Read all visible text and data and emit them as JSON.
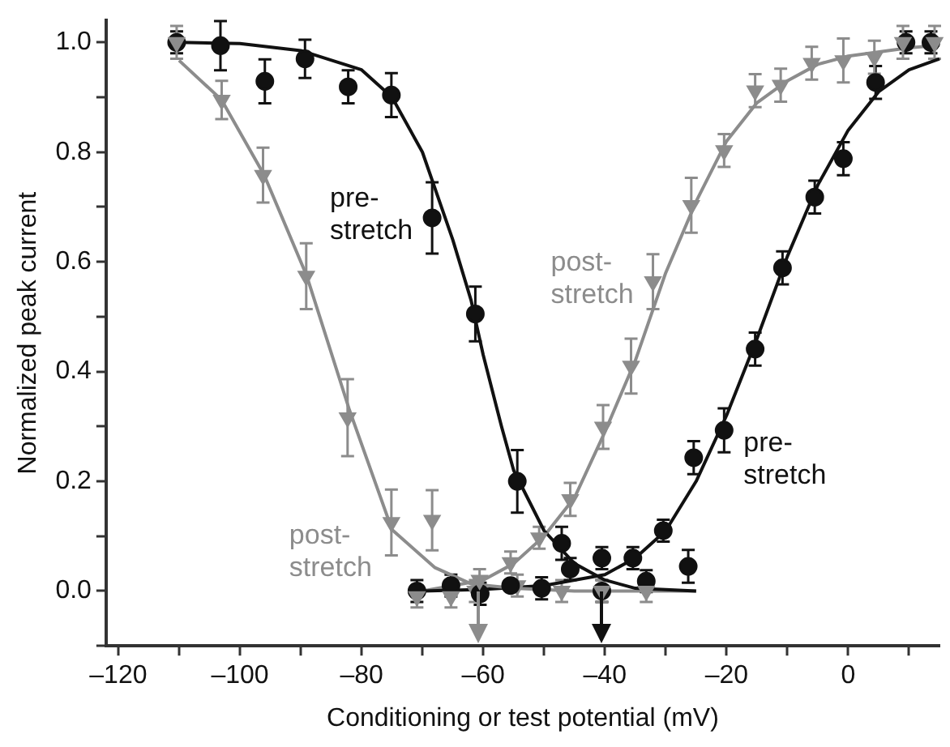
{
  "chart_data": {
    "type": "scatter",
    "xlabel": "Conditioning or test potential (mV)",
    "ylabel": "Normalized peak current",
    "xlim": [
      -122,
      15
    ],
    "ylim": [
      -0.1,
      1.04
    ],
    "xticks": [
      {
        "value": -120,
        "label": "–120"
      },
      {
        "value": -110,
        "label": null
      },
      {
        "value": -100,
        "label": "–100"
      },
      {
        "value": -90,
        "label": null
      },
      {
        "value": -80,
        "label": "–80"
      },
      {
        "value": -70,
        "label": null
      },
      {
        "value": -60,
        "label": "–60"
      },
      {
        "value": -50,
        "label": null
      },
      {
        "value": -40,
        "label": "–40"
      },
      {
        "value": -30,
        "label": null
      },
      {
        "value": -20,
        "label": "–20"
      },
      {
        "value": -10,
        "label": null
      },
      {
        "value": 0,
        "label": "0"
      },
      {
        "value": 10,
        "label": null
      }
    ],
    "yticks": [
      {
        "value": -0.1,
        "label": null
      },
      {
        "value": 0,
        "label": "0.0"
      },
      {
        "value": 0.1,
        "label": null
      },
      {
        "value": 0.2,
        "label": "0.2"
      },
      {
        "value": 0.3,
        "label": null
      },
      {
        "value": 0.4,
        "label": "0.4"
      },
      {
        "value": 0.5,
        "label": null
      },
      {
        "value": 0.6,
        "label": "0.6"
      },
      {
        "value": 0.7,
        "label": null
      },
      {
        "value": 0.8,
        "label": "0.8"
      },
      {
        "value": 0.9,
        "label": null
      },
      {
        "value": 1.0,
        "label": "1.0"
      }
    ],
    "grid": false,
    "legend": false,
    "series": [
      {
        "type": "line",
        "marker": "none",
        "color": "#111111",
        "x": [
          -110,
          -100,
          -90,
          -80,
          -75,
          -70,
          -65,
          -62,
          -60,
          -57,
          -55,
          -50,
          -45,
          -40,
          -35,
          -25
        ],
        "values": [
          1.0,
          0.998,
          0.985,
          0.95,
          0.9,
          0.8,
          0.64,
          0.53,
          0.43,
          0.3,
          0.22,
          0.11,
          0.05,
          0.02,
          0.005,
          0.0
        ]
      },
      {
        "type": "line",
        "marker": "none",
        "color": "#8c8c8c",
        "x": [
          -110,
          -103,
          -96,
          -89,
          -82,
          -75,
          -68,
          -62,
          -55,
          -45,
          -35,
          -25
        ],
        "values": [
          0.967,
          0.895,
          0.758,
          0.574,
          0.33,
          0.112,
          0.043,
          0.013,
          0.005,
          0.0,
          0.0,
          0.0
        ]
      },
      {
        "type": "line",
        "marker": "none",
        "color": "#111111",
        "x": [
          -70,
          -60,
          -50,
          -40,
          -35,
          -30,
          -25,
          -20,
          -15,
          -10,
          -5,
          0,
          5,
          10,
          15
        ],
        "values": [
          0.0,
          0.003,
          0.01,
          0.03,
          0.06,
          0.11,
          0.2,
          0.32,
          0.46,
          0.61,
          0.74,
          0.84,
          0.91,
          0.95,
          0.97
        ]
      },
      {
        "type": "line",
        "marker": "none",
        "color": "#8c8c8c",
        "x": [
          -70,
          -60,
          -55,
          -50,
          -45,
          -40,
          -35,
          -30,
          -25,
          -20,
          -15,
          -10,
          -5,
          0,
          10,
          15
        ],
        "values": [
          0.0,
          0.02,
          0.05,
          0.1,
          0.17,
          0.29,
          0.42,
          0.58,
          0.71,
          0.82,
          0.89,
          0.93,
          0.96,
          0.975,
          0.99,
          0.995
        ]
      },
      {
        "type": "scatter",
        "name": "pre-stretch",
        "marker": "circle",
        "color": "#111111",
        "x": [
          -110.4,
          -103.2,
          -95.9,
          -89.3,
          -82.2,
          -75.1,
          -68.4,
          -61.3,
          -54.4,
          -47.1,
          -40.5,
          -33.2,
          -26.3
        ],
        "values": [
          1.0,
          0.994,
          0.929,
          0.97,
          0.919,
          0.904,
          0.68,
          0.505,
          0.2,
          0.087,
          0.0,
          0.018,
          0.045
        ],
        "errors": [
          0.02,
          0.045,
          0.04,
          0.035,
          0.03,
          0.04,
          0.065,
          0.05,
          0.057,
          0.03,
          0.02,
          0.02,
          0.03
        ]
      },
      {
        "type": "scatter",
        "name": "post-stretch",
        "marker": "triangle",
        "color": "#8c8c8c",
        "x": [
          -110.4,
          -103,
          -96.2,
          -89.1,
          -82.3,
          -75.1,
          -68.4,
          -61.3,
          -54.4,
          -47.1,
          -40.5,
          -33.2
        ],
        "values": [
          1.0,
          0.895,
          0.758,
          0.574,
          0.316,
          0.125,
          0.129,
          0.0,
          0.01,
          0.0,
          0.0,
          0.0
        ],
        "errors": [
          0.03,
          0.035,
          0.05,
          0.06,
          0.07,
          0.06,
          0.055,
          0.02,
          0.02,
          0.02,
          0.02,
          0.02
        ]
      },
      {
        "type": "scatter",
        "name": "pre-stretch",
        "marker": "circle",
        "color": "#111111",
        "x": [
          -70.9,
          -65.3,
          -60.5,
          -55.5,
          -50.4,
          -45.7,
          -40.5,
          -35.4,
          -30.4,
          -25.4,
          -20.4,
          -15.3,
          -10.8,
          -5.5,
          -0.8,
          4.5,
          9.5,
          13.6
        ],
        "values": [
          0.0,
          0.01,
          -0.005,
          0.01,
          0.005,
          0.04,
          0.06,
          0.06,
          0.11,
          0.243,
          0.293,
          0.441,
          0.589,
          0.718,
          0.788,
          0.927,
          1.0,
          1.0
        ],
        "errors": [
          0.02,
          0.02,
          0.02,
          null,
          0.02,
          0.02,
          0.02,
          0.02,
          0.02,
          0.03,
          0.04,
          0.03,
          0.03,
          0.03,
          0.03,
          0.03,
          0.02,
          0.02
        ]
      },
      {
        "type": "scatter",
        "name": "post-stretch",
        "marker": "triangle",
        "color": "#8c8c8c",
        "x": [
          -70.9,
          -65.3,
          -60.6,
          -55.5,
          -50.8,
          -45.7,
          -40.3,
          -35.7,
          -32.1,
          -25.8,
          -20.4,
          -15.3,
          -11.1,
          -6.0,
          -0.8,
          4.3,
          9.0,
          14.2
        ],
        "values": [
          -0.01,
          -0.01,
          0.02,
          0.052,
          0.097,
          0.167,
          0.299,
          0.41,
          0.564,
          0.703,
          0.803,
          0.912,
          0.922,
          0.962,
          0.967,
          0.973,
          1.0,
          1.0
        ],
        "errors": [
          0.02,
          0.02,
          0.02,
          0.02,
          0.02,
          0.03,
          0.04,
          0.05,
          0.05,
          0.05,
          0.03,
          0.03,
          0.03,
          0.03,
          0.04,
          0.03,
          0.03,
          0.03
        ]
      }
    ]
  }
}
